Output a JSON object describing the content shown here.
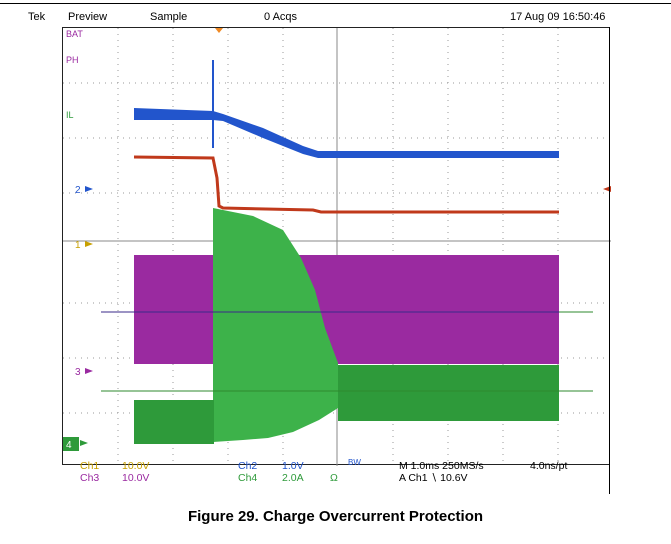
{
  "header": {
    "brand": "Tek",
    "mode": "Preview",
    "acq_mode": "Sample",
    "acqs": "0 Acqs",
    "datetime": "17 Aug 09 16:50:46"
  },
  "trace_labels": {
    "bat": "BAT",
    "ph": "PH",
    "il": "IL",
    "ch2": "2",
    "ch1": "1",
    "ch3": "3",
    "ch4": "4"
  },
  "footer": {
    "ch1_label": "Ch1",
    "ch1_scale": "10.0V",
    "ch3_label": "Ch3",
    "ch3_scale": "10.0V",
    "ch2_label": "Ch2",
    "ch2_scale": "1.0V",
    "ch4_label": "Ch4",
    "ch4_scale": "2.0A",
    "ohm": "Ω",
    "bw": "BW",
    "timebase": "M 1.0ms 250MS/s",
    "record": "4.0ns/pt",
    "trigger": "A  Ch1  ∖  10.6V"
  },
  "caption": "Figure 29. Charge Overcurrent Protection",
  "colors": {
    "ch1": "#c8a000",
    "ch2": "#2255cc",
    "ch3": "#9a2aa0",
    "ch4": "#2e9a3a",
    "il": "#c0391b",
    "grid": "#9a9a9a"
  }
}
